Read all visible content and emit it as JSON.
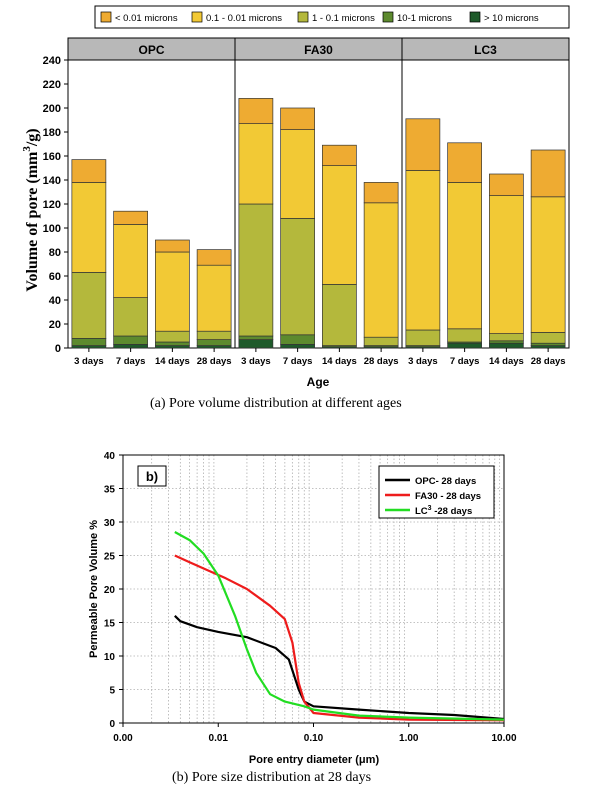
{
  "chart_data": [
    {
      "type": "bar",
      "stacked": true,
      "groups": [
        "OPC",
        "FA30",
        "LC3"
      ],
      "categories": [
        "3 days",
        "7 days",
        "14 days",
        "28 days"
      ],
      "xlabel": "Age",
      "ylabel_main": "Volume of pore (mm",
      "ylabel_sup": "3",
      "ylabel_tail": "/g)",
      "ylim": [
        0,
        240
      ],
      "yticks": [
        0,
        20,
        40,
        60,
        80,
        100,
        120,
        140,
        160,
        180,
        200,
        220,
        240
      ],
      "legend_position": "top",
      "series": [
        {
          "name": "> 10 microns",
          "color": "#1e5a2a",
          "values": [
            [
              2,
              3,
              2,
              2
            ],
            [
              7,
              3,
              1,
              1
            ],
            [
              1,
              4,
              4,
              2
            ]
          ]
        },
        {
          "name": "10-1 microns",
          "color": "#5d8a2e",
          "values": [
            [
              6,
              7,
              3,
              5
            ],
            [
              3,
              8,
              1,
              1
            ],
            [
              1,
              1,
              2,
              2
            ]
          ]
        },
        {
          "name": "1 - 0.1 microns",
          "color": "#b4b83c",
          "values": [
            [
              55,
              32,
              9,
              7
            ],
            [
              110,
              97,
              51,
              7
            ],
            [
              13,
              11,
              6,
              9
            ]
          ]
        },
        {
          "name": "0.1 - 0.01 microns",
          "color": "#f2c935",
          "values": [
            [
              75,
              61,
              66,
              55
            ],
            [
              67,
              74,
              99,
              112
            ],
            [
              133,
              122,
              115,
              113
            ]
          ]
        },
        {
          "name": "< 0.01 microns",
          "color": "#eeab32",
          "values": [
            [
              19,
              11,
              10,
              13
            ],
            [
              21,
              18,
              17,
              17
            ],
            [
              43,
              33,
              18,
              39
            ]
          ]
        }
      ],
      "caption": "(a)  Pore volume distribution at different ages"
    },
    {
      "type": "line",
      "panel_label": "b)",
      "xscale": "log",
      "xlim": [
        0.001,
        10
      ],
      "xticks": [
        "0.00",
        "0.01",
        "0.10",
        "1.00",
        "10.00"
      ],
      "xlabel": "Pore entry diameter (μm)",
      "ylabel": "Permeable Pore Volume %",
      "ylim": [
        0,
        40
      ],
      "yticks": [
        0,
        5,
        10,
        15,
        20,
        25,
        30,
        35,
        40
      ],
      "grid": true,
      "legend_position": "top-right",
      "series": [
        {
          "name": "OPC- 28 days",
          "color": "#000000",
          "points": [
            [
              0.0035,
              16
            ],
            [
              0.004,
              15.2
            ],
            [
              0.006,
              14.3
            ],
            [
              0.01,
              13.6
            ],
            [
              0.02,
              12.8
            ],
            [
              0.04,
              11.2
            ],
            [
              0.055,
              9.5
            ],
            [
              0.07,
              5
            ],
            [
              0.08,
              3.2
            ],
            [
              0.1,
              2.5
            ],
            [
              0.3,
              2
            ],
            [
              1,
              1.5
            ],
            [
              3,
              1.2
            ],
            [
              10,
              0.6
            ]
          ]
        },
        {
          "name": "FA30 - 28 days",
          "color": "#ee1c1c",
          "points": [
            [
              0.0035,
              25
            ],
            [
              0.005,
              24
            ],
            [
              0.008,
              22.7
            ],
            [
              0.012,
              21.6
            ],
            [
              0.02,
              20
            ],
            [
              0.035,
              17.5
            ],
            [
              0.05,
              15.5
            ],
            [
              0.06,
              12
            ],
            [
              0.07,
              6
            ],
            [
              0.08,
              3.2
            ],
            [
              0.1,
              1.5
            ],
            [
              0.3,
              0.8
            ],
            [
              1,
              0.5
            ],
            [
              10,
              0.4
            ]
          ]
        },
        {
          "name": "LC",
          "name_sup": "3",
          "name_tail": " -28 days",
          "color": "#22dd22",
          "points": [
            [
              0.0035,
              28.5
            ],
            [
              0.005,
              27.3
            ],
            [
              0.007,
              25.3
            ],
            [
              0.01,
              22
            ],
            [
              0.015,
              16
            ],
            [
              0.02,
              11
            ],
            [
              0.025,
              7.5
            ],
            [
              0.035,
              4.3
            ],
            [
              0.05,
              3.2
            ],
            [
              0.08,
              2.5
            ],
            [
              0.1,
              2
            ],
            [
              0.3,
              1.1
            ],
            [
              1,
              0.8
            ],
            [
              10,
              0.5
            ]
          ]
        }
      ],
      "caption": "(b)  Pore size distribution at 28 days"
    }
  ]
}
